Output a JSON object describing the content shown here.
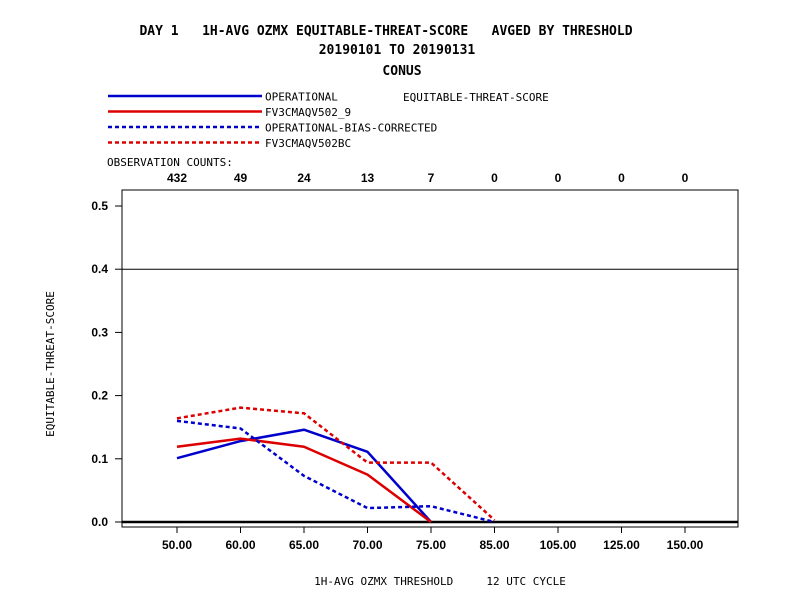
{
  "header": {
    "line1": "DAY 1   1H-AVG OZMX EQUITABLE-THREAT-SCORE   AVGED BY THRESHOLD",
    "line2": "20190101 TO 20190131",
    "line3": "CONUS"
  },
  "legend": {
    "metric_label": "EQUITABLE-THREAT-SCORE",
    "observation_counts_label": "OBSERVATION COUNTS:"
  },
  "chart_data": {
    "type": "line",
    "title": "DAY 1   1H-AVG OZMX EQUITABLE-THREAT-SCORE   AVGED BY THRESHOLD",
    "subtitle": "20190101 TO 20190131",
    "region": "CONUS",
    "xlabel": "1H-AVG OZMX THRESHOLD     12 UTC CYCLE",
    "ylabel": "EQUITABLE-THREAT-SCORE",
    "categories": [
      "50.00",
      "60.00",
      "65.00",
      "70.00",
      "75.00",
      "85.00",
      "105.00",
      "125.00",
      "150.00"
    ],
    "observation_counts": [
      "432",
      "49",
      "24",
      "13",
      "7",
      "0",
      "0",
      "0",
      "0"
    ],
    "y_ticks": [
      "0.0",
      "0.1",
      "0.2",
      "0.3",
      "0.4",
      "0.5"
    ],
    "ylim": [
      0,
      0.5
    ],
    "reference_line": 0.4,
    "grid": false,
    "legend_position": "top-left",
    "series": [
      {
        "name": "OPERATIONAL",
        "color": "#0000cc",
        "dash": "solid",
        "values": [
          0.101,
          0.128,
          0.146,
          0.111,
          0.0,
          null,
          null,
          null,
          null
        ]
      },
      {
        "name": "FV3CMAQV502_9",
        "color": "#dd0000",
        "dash": "solid",
        "values": [
          0.119,
          0.132,
          0.119,
          0.075,
          0.0,
          null,
          null,
          null,
          null
        ]
      },
      {
        "name": "OPERATIONAL-BIAS-CORRECTED",
        "color": "#0000cc",
        "dash": "dashed",
        "values": [
          0.16,
          0.148,
          0.073,
          0.022,
          0.025,
          0.0,
          null,
          null,
          null
        ]
      },
      {
        "name": "FV3CMAQV502BC",
        "color": "#dd0000",
        "dash": "dashed",
        "values": [
          0.164,
          0.181,
          0.172,
          0.094,
          0.094,
          0.003,
          null,
          null,
          null
        ]
      }
    ]
  }
}
